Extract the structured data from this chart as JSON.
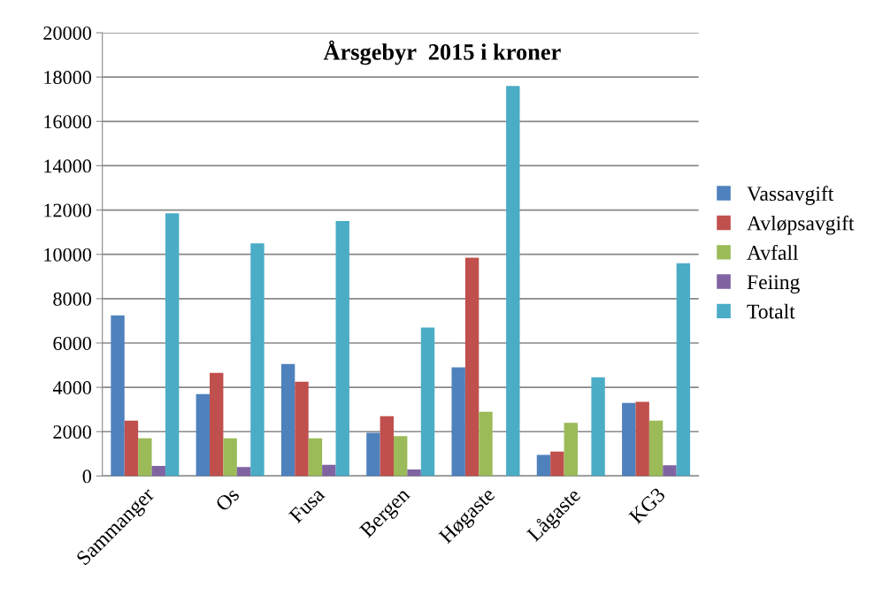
{
  "chart_data": {
    "type": "bar",
    "title": "Årsgebyr  2015 i kroner",
    "categories": [
      "Sammanger",
      "Os",
      "Fusa",
      "Bergen",
      "Høgaste",
      "Lågaste",
      "KG3"
    ],
    "series": [
      {
        "name": "Vassavgift",
        "color": "#4f81bd",
        "values": [
          7250,
          3700,
          5050,
          1950,
          4900,
          950,
          3300
        ]
      },
      {
        "name": "Avløpsavgift",
        "color": "#c0504d",
        "values": [
          2500,
          4650,
          4250,
          2700,
          9850,
          1100,
          3350
        ]
      },
      {
        "name": "Avfall",
        "color": "#9bbb59",
        "values": [
          1700,
          1700,
          1700,
          1800,
          2900,
          2400,
          2500
        ]
      },
      {
        "name": "Feiing",
        "color": "#8064a2",
        "values": [
          450,
          400,
          500,
          300,
          null,
          null,
          480
        ]
      },
      {
        "name": "Totalt",
        "color": "#4bacc6",
        "values": [
          11850,
          10500,
          11500,
          6700,
          17600,
          4450,
          9600
        ]
      }
    ],
    "ylim": [
      0,
      20000
    ],
    "yticks": [
      0,
      2000,
      4000,
      6000,
      8000,
      10000,
      12000,
      14000,
      16000,
      18000,
      20000
    ],
    "grid": "y",
    "legend": "right"
  }
}
